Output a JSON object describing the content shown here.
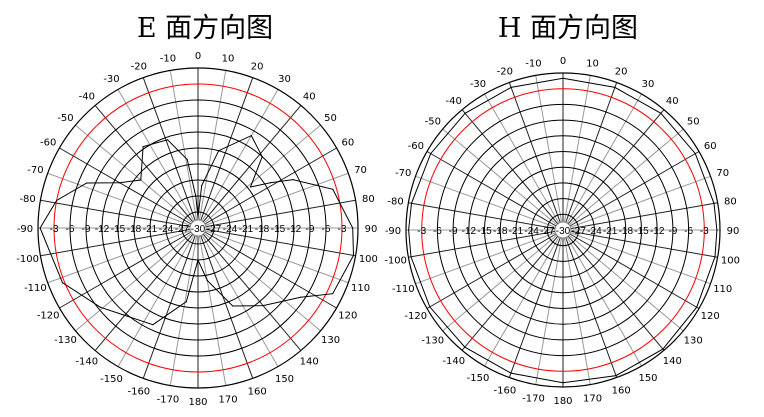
{
  "chart_data": [
    {
      "type": "line",
      "coordinate_system": "polar",
      "title": "E 面方向图",
      "angular_ticks": [
        0,
        10,
        20,
        30,
        40,
        50,
        60,
        70,
        80,
        90,
        100,
        110,
        120,
        130,
        140,
        150,
        160,
        170,
        180,
        -170,
        -160,
        -150,
        -140,
        -130,
        -120,
        -110,
        -100,
        -90,
        -80,
        -70,
        -60,
        -50,
        -40,
        -30,
        -20,
        -10
      ],
      "radial_ticks": [
        -3,
        -6,
        -9,
        -12,
        -15,
        -18,
        -21,
        -24,
        -27,
        -30
      ],
      "radial_range": [
        -30,
        0
      ],
      "reference_ring": {
        "value": -3,
        "color": "#ff0000"
      },
      "grid": true,
      "series": [
        {
          "color": "#000000",
          "angles": [
            -4,
            0,
            5,
            15,
            30,
            42,
            52,
            58,
            63,
            74,
            90,
            100,
            116,
            124,
            140,
            156,
            170,
            180,
            -171,
            -155,
            -129,
            -112,
            -90,
            -79,
            -68,
            -60,
            -50,
            -34,
            -19,
            -9
          ],
          "values": [
            -24,
            -28,
            -22,
            -15,
            -10,
            -12,
            -17.5,
            -14,
            -10,
            -3.7,
            -1,
            -0.4,
            -1.9,
            -6.8,
            -11,
            -14,
            -20,
            -24,
            -16,
            -10,
            -6.4,
            -2.6,
            -0.4,
            -3,
            -7.5,
            -13,
            -16,
            -11.6,
            -12.5,
            -17
          ]
        }
      ]
    },
    {
      "type": "line",
      "coordinate_system": "polar",
      "title": "H 面方向图",
      "angular_ticks": [
        0,
        10,
        20,
        30,
        40,
        50,
        60,
        70,
        80,
        90,
        100,
        110,
        120,
        130,
        140,
        150,
        160,
        170,
        180,
        -170,
        -160,
        -150,
        -140,
        -130,
        -120,
        -110,
        -100,
        -90,
        -80,
        -70,
        -60,
        -50,
        -40,
        -30,
        -20,
        -10
      ],
      "radial_ticks": [
        -3,
        -6,
        -9,
        -12,
        -15,
        -18,
        -21,
        -24,
        -27,
        -30
      ],
      "radial_range": [
        -30,
        0
      ],
      "reference_ring": {
        "value": -3,
        "color": "#ff0000"
      },
      "grid": true,
      "series": [
        {
          "color": "#000000",
          "angles": [
            0,
            20,
            40,
            60,
            80,
            90,
            100,
            120,
            140,
            160,
            180,
            -160,
            -140,
            -120,
            -100,
            -90,
            -80,
            -60,
            -40,
            -20
          ],
          "values": [
            -1.0,
            -1.0,
            -0.9,
            -0.8,
            -0.7,
            -0.6,
            -0.5,
            -0.5,
            -0.3,
            -0.4,
            -0.8,
            -0.9,
            -0.8,
            -0.6,
            -0.5,
            -0.5,
            -0.6,
            -0.8,
            -0.9,
            -1.0
          ]
        }
      ]
    }
  ]
}
